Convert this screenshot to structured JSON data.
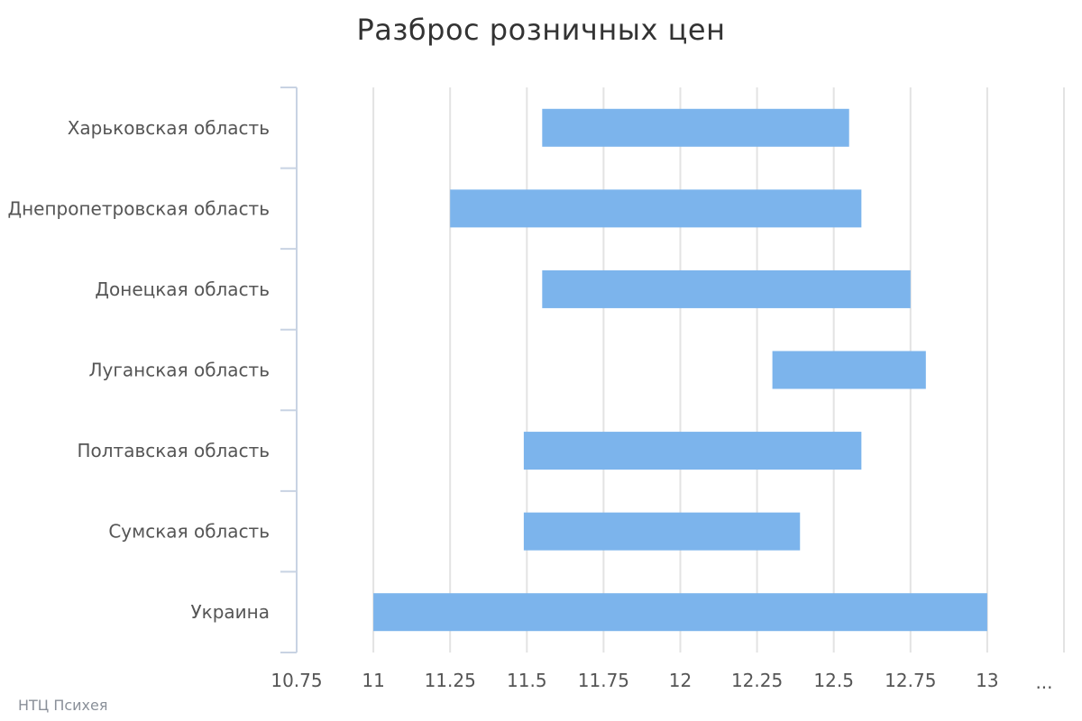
{
  "credits": "НТЦ Психея",
  "overflow_tick": "...",
  "colors": {
    "bar": "#7cb4ec",
    "grid": "#e3e3e3",
    "axis": "#c8d3e3",
    "text": "#555555"
  },
  "chart_data": {
    "type": "bar",
    "orientation": "horizontal-range",
    "title": "Разброс розничных цен",
    "xlabel": "",
    "ylabel": "",
    "categories": [
      "Харьковская область",
      "Днепропетровская область",
      "Донецкая область",
      "Луганская область",
      "Полтавская область",
      "Сумская область",
      "Украина"
    ],
    "ranges": [
      [
        11.55,
        12.55
      ],
      [
        11.25,
        12.59
      ],
      [
        11.55,
        12.75
      ],
      [
        12.3,
        12.8
      ],
      [
        11.49,
        12.59
      ],
      [
        11.49,
        12.39
      ],
      [
        11.0,
        13.0
      ]
    ],
    "xlim": [
      10.75,
      13.25
    ],
    "xticks": [
      "10.75",
      "11",
      "11.25",
      "11.5",
      "11.75",
      "12",
      "12.25",
      "12.5",
      "12.75",
      "13"
    ],
    "grid": true,
    "legend": "none"
  }
}
